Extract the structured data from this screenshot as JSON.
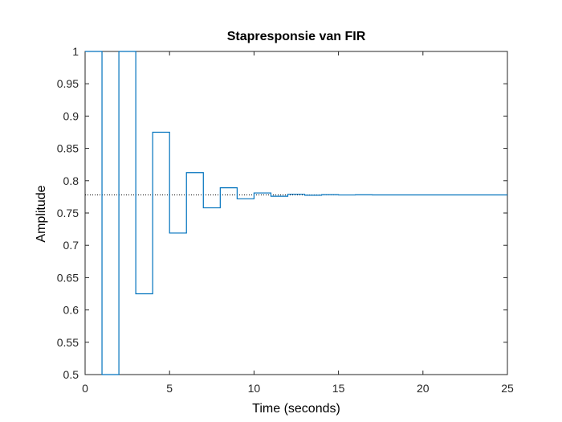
{
  "chart_data": {
    "type": "line",
    "title": "Stapresponsie van FIR",
    "xlabel": "Time (seconds)",
    "ylabel": "Amplitude",
    "xlim": [
      0,
      25
    ],
    "ylim": [
      0.5,
      1
    ],
    "xticks": [
      0,
      5,
      10,
      15,
      20,
      25
    ],
    "yticks": [
      0.5,
      0.55,
      0.6,
      0.65,
      0.7,
      0.75,
      0.8,
      0.85,
      0.9,
      0.95,
      1
    ],
    "xtick_labels": [
      "0",
      "5",
      "10",
      "15",
      "20",
      "25"
    ],
    "ytick_labels": [
      "0.5",
      "0.55",
      "0.6",
      "0.65",
      "0.7",
      "0.75",
      "0.8",
      "0.85",
      "0.9",
      "0.95",
      "1"
    ],
    "grid": false,
    "steady_state": 0.778,
    "series": [
      {
        "style": "stairs",
        "x": [
          0,
          1,
          2,
          3,
          4,
          5,
          6,
          7,
          8,
          9,
          10,
          11,
          12,
          13,
          14,
          15,
          16,
          17,
          18,
          19,
          20,
          21,
          22,
          23,
          24,
          25
        ],
        "values": [
          1.0,
          0.5,
          1.0,
          0.625,
          0.875,
          0.719,
          0.8125,
          0.758,
          0.789,
          0.772,
          0.781,
          0.776,
          0.779,
          0.7775,
          0.7783,
          0.7779,
          0.7781,
          0.778,
          0.778,
          0.778,
          0.778,
          0.778,
          0.778,
          0.778,
          0.778,
          0.778
        ]
      }
    ]
  },
  "colors": {
    "series": "#0072BD",
    "axes": "#262626",
    "steady_state_line": "#000000"
  }
}
